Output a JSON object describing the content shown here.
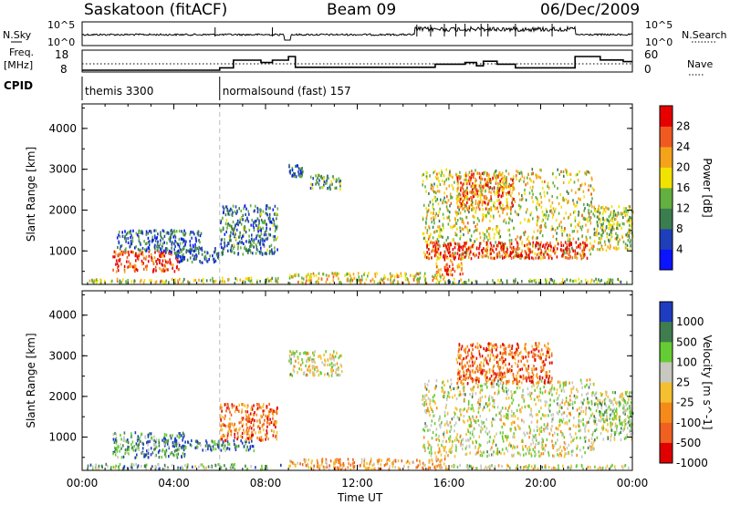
{
  "header": {
    "station": "Saskatoon (fitACF)",
    "beam": "Beam 09",
    "date": "06/Dec/2009"
  },
  "status_panels": {
    "nsky_label": "N.Sky",
    "nsky_ticks": [
      "10^5",
      "10^0"
    ],
    "nsearch_label": "N.Search",
    "nsearch_ticks": [
      "10^5",
      "10^0"
    ],
    "freq_label_1": "Freq.",
    "freq_label_2": "[MHz]",
    "freq_ticks": [
      "18",
      "8"
    ],
    "nave_label": "Nave",
    "nave_ticks": [
      "60",
      "0"
    ],
    "cpid_label": "CPID",
    "cpid_segments": [
      {
        "label": "themis 3300",
        "start_hour": 0,
        "end_hour": 6
      },
      {
        "label": "normalsound (fast) 157",
        "start_hour": 6,
        "end_hour": 24
      }
    ],
    "freq_steps": [
      {
        "t": 0,
        "f": 9
      },
      {
        "t": 6,
        "f": 10.3
      },
      {
        "t": 6.6,
        "f": 14.5
      },
      {
        "t": 7.8,
        "f": 13.2
      },
      {
        "t": 8.3,
        "f": 14.5
      },
      {
        "t": 9,
        "f": 16.5
      },
      {
        "t": 9.3,
        "f": 10.6
      },
      {
        "t": 15.4,
        "f": 12.3
      },
      {
        "t": 16.7,
        "f": 13.2
      },
      {
        "t": 17.2,
        "f": 11.4
      },
      {
        "t": 17.5,
        "f": 13.9
      },
      {
        "t": 18.1,
        "f": 12.3
      },
      {
        "t": 18.9,
        "f": 10.3
      },
      {
        "t": 21.5,
        "f": 16.5
      },
      {
        "t": 22.6,
        "f": 14.6
      },
      {
        "t": 23.6,
        "f": 13.7
      },
      {
        "t": 24,
        "f": 13.7
      }
    ]
  },
  "chart_data": [
    {
      "type": "heatmap",
      "name": "power",
      "ylabel": "Slant Range [km]",
      "xlabel": "Time UT",
      "x_ticks": [
        "00:00",
        "04:00",
        "08:00",
        "12:00",
        "16:00",
        "20:00",
        "00:00"
      ],
      "xlim_hours": [
        0,
        24
      ],
      "ylim_km": [
        180,
        4600
      ],
      "y_ticks": [
        "1000",
        "2000",
        "3000",
        "4000"
      ],
      "colorbar_label": "Power [dB]",
      "colorbar_ticks": [
        "4",
        "8",
        "12",
        "16",
        "20",
        "24",
        "28"
      ],
      "colors": [
        "#0a14ff",
        "#1f3fb8",
        "#3b7d4f",
        "#63b040",
        "#f2e200",
        "#f5a31a",
        "#f05a20",
        "#e80000"
      ],
      "regions": [
        {
          "t0": 0.2,
          "t1": 5.4,
          "r0": 190,
          "r1": 300,
          "level": 0.55
        },
        {
          "t0": 5.4,
          "t1": 8.7,
          "r0": 190,
          "r1": 330,
          "level": 0.5
        },
        {
          "t0": 9.0,
          "t1": 15.8,
          "r0": 190,
          "r1": 450,
          "level": 0.6
        },
        {
          "t0": 15.8,
          "t1": 23.9,
          "r0": 190,
          "r1": 300,
          "level": 0.45
        },
        {
          "t0": 1.3,
          "t1": 4.2,
          "r0": 480,
          "r1": 980,
          "level": 0.85
        },
        {
          "t0": 1.5,
          "t1": 5.2,
          "r0": 950,
          "r1": 1500,
          "level": 0.25
        },
        {
          "t0": 4.0,
          "t1": 6.0,
          "r0": 700,
          "r1": 1050,
          "level": 0.2
        },
        {
          "t0": 6.0,
          "t1": 8.5,
          "r0": 900,
          "r1": 2100,
          "level": 0.3
        },
        {
          "t0": 9.9,
          "t1": 11.3,
          "r0": 2500,
          "r1": 2850,
          "level": 0.35
        },
        {
          "t0": 9.0,
          "t1": 9.6,
          "r0": 2800,
          "r1": 3100,
          "level": 0.25
        },
        {
          "t0": 14.8,
          "t1": 22.3,
          "r0": 800,
          "r1": 3000,
          "level": 0.55
        },
        {
          "t0": 15.0,
          "t1": 22.0,
          "r0": 800,
          "r1": 1200,
          "level": 0.9
        },
        {
          "t0": 15.4,
          "t1": 16.6,
          "r0": 400,
          "r1": 900,
          "level": 0.8
        },
        {
          "t0": 16.3,
          "t1": 18.8,
          "r0": 2000,
          "r1": 2900,
          "level": 0.75
        },
        {
          "t0": 22.3,
          "t1": 24.0,
          "r0": 1000,
          "r1": 2100,
          "level": 0.5
        }
      ]
    },
    {
      "type": "heatmap",
      "name": "velocity",
      "ylabel": "Slant Range [km]",
      "xlabel": "Time UT",
      "x_ticks": [
        "00:00",
        "04:00",
        "08:00",
        "12:00",
        "16:00",
        "20:00",
        "00:00"
      ],
      "xlim_hours": [
        0,
        24
      ],
      "ylim_km": [
        180,
        4600
      ],
      "y_ticks": [
        "1000",
        "2000",
        "3000",
        "4000"
      ],
      "colorbar_label": "Velocity [m s^-1]",
      "colorbar_ticks": [
        "1000",
        "500",
        "100",
        "25",
        "-25",
        "-100",
        "-500",
        "-1000"
      ],
      "colors": [
        "#1e3cc0",
        "#3f7d4f",
        "#66cc33",
        "#c8c8c0",
        "#f5c030",
        "#f58a1a",
        "#f06020",
        "#e00000"
      ],
      "regions": [
        {
          "t0": 0.2,
          "t1": 8.7,
          "r0": 190,
          "r1": 320,
          "level": 0.3
        },
        {
          "t0": 9.0,
          "t1": 15.8,
          "r0": 190,
          "r1": 450,
          "level": 0.65
        },
        {
          "t0": 15.8,
          "t1": 23.9,
          "r0": 190,
          "r1": 300,
          "level": 0.45
        },
        {
          "t0": 1.3,
          "t1": 4.5,
          "r0": 480,
          "r1": 1100,
          "level": 0.25
        },
        {
          "t0": 4.0,
          "t1": 7.5,
          "r0": 650,
          "r1": 900,
          "level": 0.2
        },
        {
          "t0": 6.0,
          "t1": 8.5,
          "r0": 900,
          "r1": 1800,
          "level": 0.75
        },
        {
          "t0": 9.0,
          "t1": 11.3,
          "r0": 2500,
          "r1": 3100,
          "level": 0.45
        },
        {
          "t0": 14.8,
          "t1": 22.3,
          "r0": 500,
          "r1": 2400,
          "level": 0.45
        },
        {
          "t0": 16.3,
          "t1": 20.5,
          "r0": 2300,
          "r1": 3300,
          "level": 0.78
        },
        {
          "t0": 22.3,
          "t1": 24.0,
          "r0": 900,
          "r1": 2100,
          "level": 0.4
        }
      ]
    }
  ]
}
